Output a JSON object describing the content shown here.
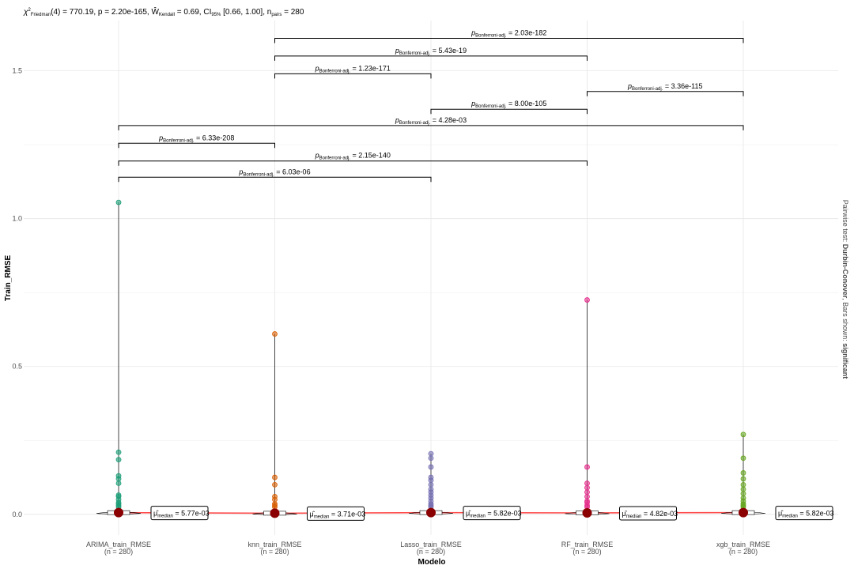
{
  "header": {
    "stat_prefix": "χ",
    "stat_sup": "2",
    "stat_sub": "Friedman",
    "stat_rest": "(4) = 770.19, p = 2.20e-165, Ŵ",
    "kendall_sub": "Kendall",
    "kendall_rest": " = 0.69, CI",
    "ci_sub": "95%",
    "ci_rest": " [0.66, 1.00], n",
    "pairs_sub": "pairs",
    "pairs_rest": " = 280"
  },
  "caption": {
    "prefix": "Pairwise test: ",
    "test_name": "Durbin-Conover",
    "middle": ", Bars shown: ",
    "shown": "significant"
  },
  "chart_data": {
    "type": "violin-box",
    "xlabel": "Modelo",
    "ylabel": "Train_RMSE",
    "ylim": [
      -0.07,
      1.67
    ],
    "yticks": [
      0.0,
      0.5,
      1.0,
      1.5
    ],
    "ytick_labels": [
      "0.0",
      "0.5",
      "1.0",
      "1.5"
    ],
    "grid": true,
    "groups": [
      {
        "name": "ARIMA_train_RMSE",
        "n_label": "(n = 280)",
        "color": "#1b9e77",
        "median": 0.00577,
        "median_label": "= 5.77e-03",
        "outliers": [
          1.055,
          0.21,
          0.185,
          0.13,
          0.12,
          0.105,
          0.065,
          0.06,
          0.05,
          0.04,
          0.035,
          0.03,
          0.025
        ]
      },
      {
        "name": "knn_train_RMSE",
        "n_label": "(n = 280)",
        "color": "#d95f02",
        "median": 0.00371,
        "median_label": "= 3.71e-03",
        "outliers": [
          0.61,
          0.125,
          0.1,
          0.06,
          0.05,
          0.035,
          0.03,
          0.025
        ]
      },
      {
        "name": "Lasso_train_RMSE",
        "n_label": "(n = 280)",
        "color": "#7570b3",
        "median": 0.00582,
        "median_label": "= 5.82e-03",
        "outliers": [
          0.205,
          0.19,
          0.16,
          0.125,
          0.115,
          0.1,
          0.085,
          0.075,
          0.065,
          0.055,
          0.045,
          0.035,
          0.03,
          0.025
        ]
      },
      {
        "name": "RF_train_RMSE",
        "n_label": "(n = 280)",
        "color": "#e7298a",
        "median": 0.00482,
        "median_label": "= 4.82e-03",
        "outliers": [
          0.725,
          0.16,
          0.105,
          0.09,
          0.075,
          0.06,
          0.045,
          0.04,
          0.03,
          0.025
        ]
      },
      {
        "name": "xgb_train_RMSE",
        "n_label": "(n = 280)",
        "color": "#66a61e",
        "median": 0.00582,
        "median_label": "= 5.82e-03",
        "outliers": [
          0.27,
          0.19,
          0.14,
          0.12,
          0.1,
          0.085,
          0.07,
          0.055,
          0.045,
          0.035,
          0.03,
          0.025
        ]
      }
    ],
    "comparisons": [
      {
        "from": 0,
        "to": 2,
        "y": 1.14,
        "p_label": "= 6.03e-06"
      },
      {
        "from": 0,
        "to": 3,
        "y": 1.195,
        "p_label": "= 2.15e-140"
      },
      {
        "from": 0,
        "to": 1,
        "y": 1.255,
        "p_label": "= 6.33e-208"
      },
      {
        "from": 0,
        "to": 4,
        "y": 1.315,
        "p_label": "= 4.28e-03"
      },
      {
        "from": 2,
        "to": 3,
        "y": 1.37,
        "p_label": "= 8.00e-105"
      },
      {
        "from": 3,
        "to": 4,
        "y": 1.43,
        "p_label": "= 3.36e-115"
      },
      {
        "from": 1,
        "to": 2,
        "y": 1.49,
        "p_label": "= 1.23e-171"
      },
      {
        "from": 1,
        "to": 3,
        "y": 1.55,
        "p_label": "= 5.43e-19"
      },
      {
        "from": 1,
        "to": 4,
        "y": 1.61,
        "p_label": "= 2.03e-182"
      }
    ],
    "p_symbol": "p",
    "p_sub": "Bonferroni-adj.",
    "median_symbol": "μ̂",
    "median_sub": "median"
  }
}
